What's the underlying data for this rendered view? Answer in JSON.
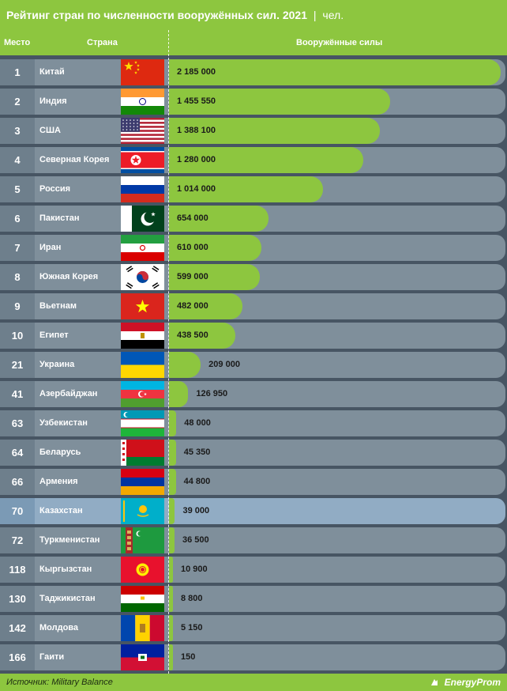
{
  "header": {
    "title": "Рейтинг стран по численности вооружённых сил. 2021",
    "separator": "|",
    "unit": "чел."
  },
  "columns": {
    "rank": "Место",
    "country": "Страна",
    "forces": "Вооружённые силы"
  },
  "footer": {
    "source": "Источник: Military Balance",
    "brand": "EnergyProm"
  },
  "colors": {
    "header_bg": "#8dc63f",
    "bar": "#8dc63f",
    "row_bg": "#7f8f9b",
    "row_highlight": "#91acc4",
    "page_bg": "#475563"
  },
  "chart_data": {
    "type": "bar",
    "orientation": "horizontal",
    "title": "Рейтинг стран по численности вооружённых сил. 2021",
    "unit": "чел.",
    "highlighted": "Казахстан",
    "rows": [
      {
        "rank": "1",
        "country": "Китай",
        "value": 2185000,
        "label": "2 185 000",
        "flag": "cn"
      },
      {
        "rank": "2",
        "country": "Индия",
        "value": 1455550,
        "label": "1 455 550",
        "flag": "in"
      },
      {
        "rank": "3",
        "country": "США",
        "value": 1388100,
        "label": "1 388 100",
        "flag": "us"
      },
      {
        "rank": "4",
        "country": "Северная Корея",
        "value": 1280000,
        "label": "1 280 000",
        "flag": "kp"
      },
      {
        "rank": "5",
        "country": "Россия",
        "value": 1014000,
        "label": "1 014 000",
        "flag": "ru"
      },
      {
        "rank": "6",
        "country": "Пакистан",
        "value": 654000,
        "label": "654 000",
        "flag": "pk"
      },
      {
        "rank": "7",
        "country": "Иран",
        "value": 610000,
        "label": "610 000",
        "flag": "ir"
      },
      {
        "rank": "8",
        "country": "Южная Корея",
        "value": 599000,
        "label": "599 000",
        "flag": "kr"
      },
      {
        "rank": "9",
        "country": "Вьетнам",
        "value": 482000,
        "label": "482 000",
        "flag": "vn"
      },
      {
        "rank": "10",
        "country": "Египет",
        "value": 438500,
        "label": "438 500",
        "flag": "eg"
      },
      {
        "rank": "21",
        "country": "Украина",
        "value": 209000,
        "label": "209 000",
        "flag": "ua"
      },
      {
        "rank": "41",
        "country": "Азербайджан",
        "value": 126950,
        "label": "126 950",
        "flag": "az"
      },
      {
        "rank": "63",
        "country": "Узбекистан",
        "value": 48000,
        "label": "48 000",
        "flag": "uz"
      },
      {
        "rank": "64",
        "country": "Беларусь",
        "value": 45350,
        "label": "45 350",
        "flag": "by"
      },
      {
        "rank": "66",
        "country": "Армения",
        "value": 44800,
        "label": "44 800",
        "flag": "am"
      },
      {
        "rank": "70",
        "country": "Казахстан",
        "value": 39000,
        "label": "39 000",
        "flag": "kz"
      },
      {
        "rank": "72",
        "country": "Туркменистан",
        "value": 36500,
        "label": "36 500",
        "flag": "tm"
      },
      {
        "rank": "118",
        "country": "Кыргызстан",
        "value": 10900,
        "label": "10 900",
        "flag": "kg"
      },
      {
        "rank": "130",
        "country": "Таджикистан",
        "value": 8800,
        "label": "8 800",
        "flag": "tj"
      },
      {
        "rank": "142",
        "country": "Молдова",
        "value": 5150,
        "label": "5 150",
        "flag": "md"
      },
      {
        "rank": "166",
        "country": "Гаити",
        "value": 150,
        "label": "150",
        "flag": "ht"
      }
    ]
  }
}
